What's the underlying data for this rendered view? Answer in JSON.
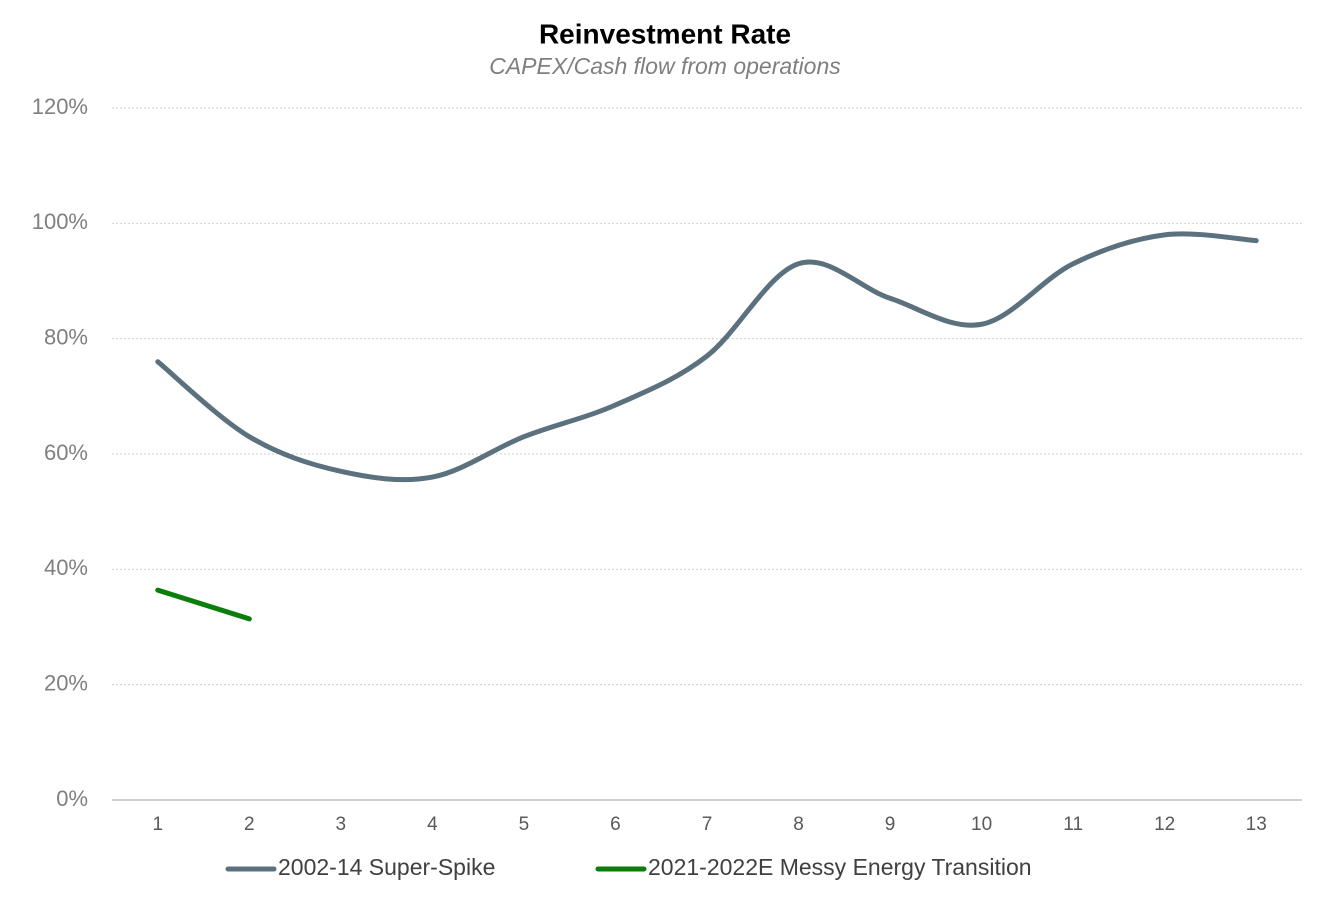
{
  "chart_data": {
    "type": "line",
    "title": "Reinvestment Rate",
    "subtitle": "CAPEX/Cash flow from operations",
    "categories": [
      "1",
      "2",
      "3",
      "4",
      "5",
      "6",
      "7",
      "8",
      "9",
      "10",
      "11",
      "12",
      "13"
    ],
    "series": [
      {
        "name": "2002-14 Super-Spike",
        "color": "#5b717e",
        "values": [
          76,
          63,
          57,
          56,
          63,
          68.5,
          77,
          93,
          87,
          82.5,
          93,
          98,
          97
        ]
      },
      {
        "name": "2021-2022E Messy Energy Transition",
        "color": "#0a7d0a",
        "values": [
          36.4,
          31.4,
          null,
          null,
          null,
          null,
          null,
          null,
          null,
          null,
          null,
          null,
          null
        ]
      }
    ],
    "ylim": [
      0,
      120
    ],
    "yticks": [
      {
        "value": 0,
        "label": "0%"
      },
      {
        "value": 20,
        "label": "20%"
      },
      {
        "value": 40,
        "label": "40%"
      },
      {
        "value": 60,
        "label": "60%"
      },
      {
        "value": 80,
        "label": "80%"
      },
      {
        "value": 100,
        "label": "100%"
      },
      {
        "value": 120,
        "label": "120%"
      }
    ],
    "grid": true,
    "smooth": true,
    "legend": "bottom"
  }
}
